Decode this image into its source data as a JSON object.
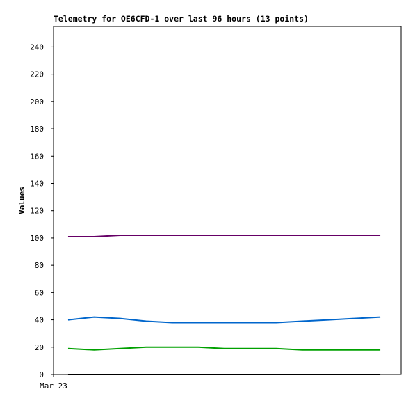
{
  "chart_data": {
    "type": "line",
    "title": "Telemetry for OE6CFD-1 over last 96 hours (13 points)",
    "y_label": "Values",
    "x": [
      0,
      1,
      2,
      3,
      4,
      5,
      6,
      7,
      8,
      9,
      10,
      11,
      12
    ],
    "xlim": [
      -0.56,
      12.8
    ],
    "xticks": [
      {
        "value": -0.56,
        "label": "Mar 23"
      }
    ],
    "ylim": [
      0,
      255
    ],
    "yticks": [
      0,
      20,
      40,
      60,
      80,
      100,
      120,
      140,
      160,
      180,
      200,
      220,
      240
    ],
    "series": [
      {
        "color": "#660066",
        "values": [
          101,
          101,
          102,
          102,
          102,
          102,
          102,
          102,
          102,
          102,
          102,
          102,
          102
        ]
      },
      {
        "color": "#0066cc",
        "values": [
          40,
          42,
          41,
          39,
          38,
          38,
          38,
          38,
          38,
          39,
          40,
          41,
          42
        ]
      },
      {
        "color": "#00a000",
        "values": [
          19,
          18,
          19,
          20,
          20,
          20,
          19,
          19,
          19,
          18,
          18,
          18,
          18
        ]
      },
      {
        "color": "#000000",
        "values": [
          0,
          0,
          0,
          0,
          0,
          0,
          0,
          0,
          0,
          0,
          0,
          0,
          0
        ]
      }
    ]
  }
}
